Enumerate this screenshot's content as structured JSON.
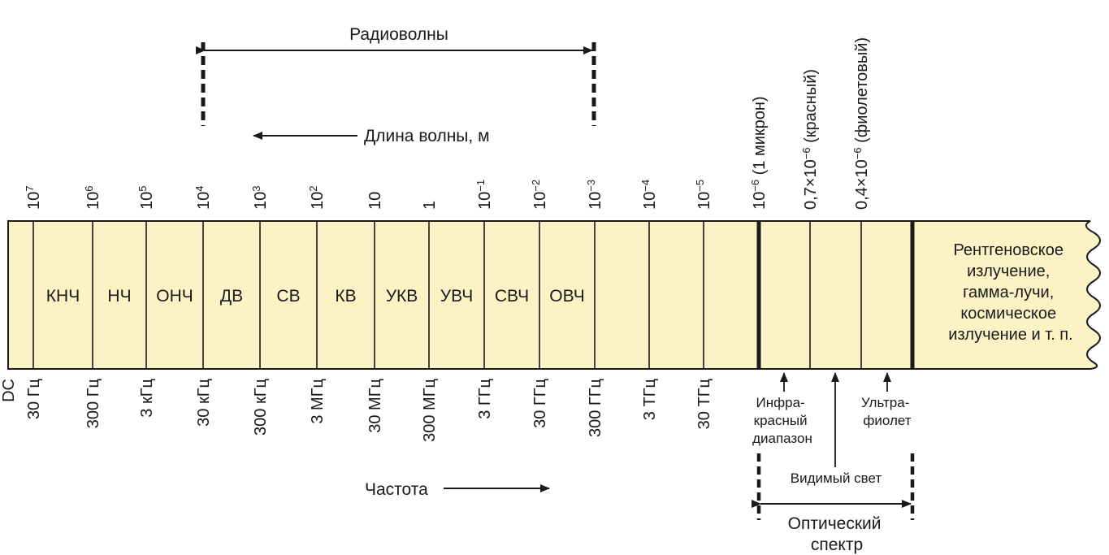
{
  "radio_waves_label": "Радиоволны",
  "wavelength_label": "Длина волны, м",
  "frequency_label": "Частота",
  "wavelength_ticks": [
    {
      "base": "10",
      "exp": "7"
    },
    {
      "base": "10",
      "exp": "6"
    },
    {
      "base": "10",
      "exp": "5"
    },
    {
      "base": "10",
      "exp": "4"
    },
    {
      "base": "10",
      "exp": "3"
    },
    {
      "base": "10",
      "exp": "2"
    },
    {
      "base": "10",
      "exp": ""
    },
    {
      "base": "1",
      "exp": ""
    },
    {
      "base": "10",
      "exp": "−1"
    },
    {
      "base": "10",
      "exp": "−2"
    },
    {
      "base": "10",
      "exp": "−3"
    },
    {
      "base": "10",
      "exp": "−4"
    },
    {
      "base": "10",
      "exp": "−5"
    }
  ],
  "optical_ticks": [
    {
      "pre": "",
      "base": "10",
      "exp": "−6",
      "post": " (1 микрон)"
    },
    {
      "pre": "0,7×",
      "base": "10",
      "exp": "−6",
      "post": " (красный)"
    },
    {
      "pre": "0,4×",
      "base": "10",
      "exp": "−6",
      "post": " (фиолетовый)"
    }
  ],
  "bands": [
    "КНЧ",
    "НЧ",
    "ОНЧ",
    "ДВ",
    "СВ",
    "КВ",
    "УКВ",
    "УВЧ",
    "СВЧ",
    "ОВЧ",
    "",
    "",
    ""
  ],
  "frequency_ticks": [
    "DC",
    "30 Гц",
    "300 Гц",
    "3 кГц",
    "30 кГц",
    "300 кГц",
    "3 МГц",
    "30 МГц",
    "300 МГц",
    "3 ГГц",
    "30 ГГц",
    "300 ГГц",
    "3 ТГц",
    "30 ТГц"
  ],
  "xray_lines": [
    "Рентгеновское",
    "излучение,",
    "гамма-лучи,",
    "космическое",
    "излучение и т. п."
  ],
  "infrared_lines": [
    "Инфра-",
    "красный",
    "диапазон"
  ],
  "visible_light_label": "Видимый свет",
  "ultraviolet_lines": [
    "Ультра-",
    "фиолет"
  ],
  "optical_spectrum_lines": [
    "Оптический",
    "спектр"
  ],
  "colors": {
    "band_fill": "#fdf1c6",
    "line": "#1a1a1a"
  }
}
